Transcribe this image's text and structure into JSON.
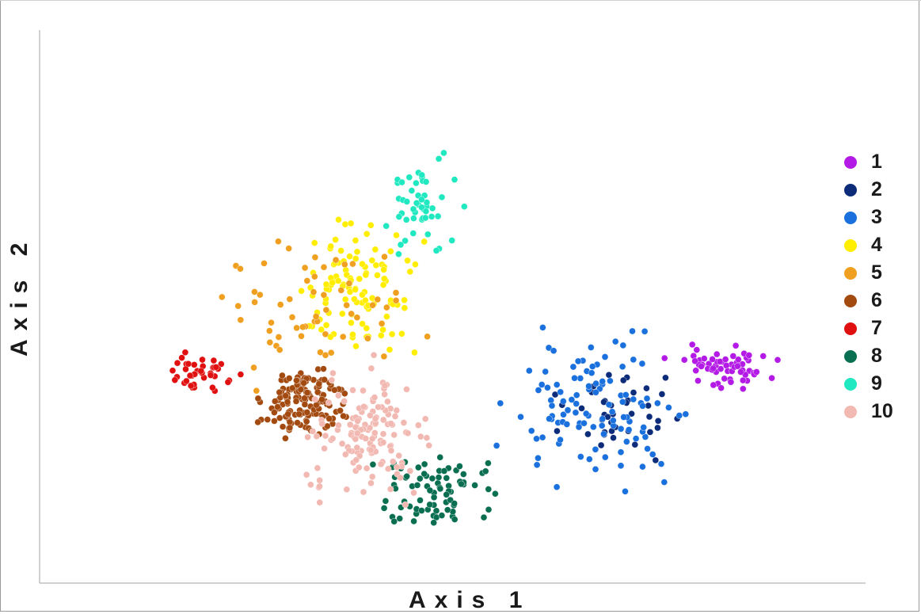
{
  "chart_data": {
    "type": "scatter",
    "title": "",
    "xlabel": "Axis 1",
    "ylabel": "Axis 2",
    "xlim": [
      0,
      100
    ],
    "ylim": [
      0,
      100
    ],
    "grid": false,
    "legend_position": "right",
    "series": [
      {
        "name": "1",
        "color": "#b31ae6",
        "centroid": [
          83,
          39
        ],
        "count": 60,
        "spread": [
          4.0,
          2.6
        ]
      },
      {
        "name": "2",
        "color": "#0c2c7a",
        "centroid": [
          70,
          31
        ],
        "count": 40,
        "spread": [
          5.0,
          5.0
        ]
      },
      {
        "name": "3",
        "color": "#1a70dd",
        "centroid": [
          68,
          31
        ],
        "count": 110,
        "spread": [
          7.0,
          8.5
        ]
      },
      {
        "name": "4",
        "color": "#ffee00",
        "centroid": [
          38,
          53
        ],
        "count": 110,
        "spread": [
          5.0,
          8.0
        ]
      },
      {
        "name": "5",
        "color": "#f0a020",
        "centroid": [
          33,
          48
        ],
        "count": 60,
        "spread": [
          8.0,
          10.0
        ]
      },
      {
        "name": "6",
        "color": "#a34a10",
        "centroid": [
          32,
          33
        ],
        "count": 140,
        "spread": [
          3.2,
          4.2
        ]
      },
      {
        "name": "7",
        "color": "#e01010",
        "centroid": [
          20,
          38
        ],
        "count": 40,
        "spread": [
          2.8,
          3.0
        ]
      },
      {
        "name": "8",
        "color": "#0a6e50",
        "centroid": [
          48,
          16
        ],
        "count": 80,
        "spread": [
          5.5,
          5.0
        ]
      },
      {
        "name": "9",
        "color": "#20e8c0",
        "centroid": [
          46,
          69
        ],
        "count": 50,
        "spread": [
          3.0,
          7.5
        ]
      },
      {
        "name": "10",
        "color": "#f2b9b2",
        "centroid": [
          40,
          27
        ],
        "count": 140,
        "spread": [
          5.0,
          7.0
        ]
      }
    ]
  }
}
